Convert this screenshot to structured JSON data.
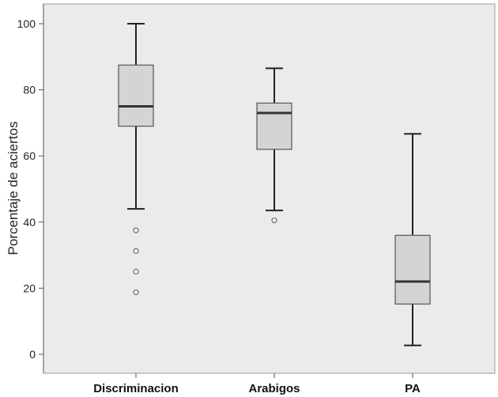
{
  "chart_data": {
    "type": "boxplot",
    "title": "",
    "xlabel": "",
    "ylabel": "Porcentaje de aciertos",
    "ylim": [
      -2,
      106
    ],
    "yticks": [
      0,
      20,
      40,
      60,
      80,
      100
    ],
    "grid": false,
    "legend": "none",
    "colors": {
      "plot_bg": "#ebebeb",
      "box_fill": "#d4d4d4",
      "box_stroke": "#555555",
      "median": "#333333",
      "whisker": "#222222",
      "outlier": "#666666"
    },
    "categories": [
      "Discriminacion",
      "Arabigos",
      "PA"
    ],
    "boxes": [
      {
        "category": "Discriminacion",
        "min": 44,
        "q1": 69,
        "median": 75,
        "q3": 87.5,
        "max": 100,
        "outliers": [
          37.5,
          31.25,
          25,
          18.75
        ]
      },
      {
        "category": "Arabigos",
        "min": 43.5,
        "q1": 62,
        "median": 73,
        "q3": 76,
        "max": 86.5,
        "outliers": [
          40.5
        ]
      },
      {
        "category": "PA",
        "min": 2.7,
        "q1": 15.2,
        "median": 22,
        "q3": 36,
        "max": 66.7,
        "outliers": []
      }
    ]
  }
}
